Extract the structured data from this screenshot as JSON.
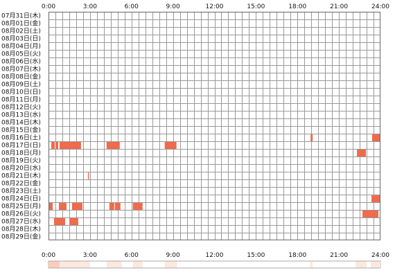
{
  "chart_data": {
    "type": "heatmap",
    "x_unit": "hour",
    "x_range": [
      0,
      24
    ],
    "x_tick_values": [
      0,
      3,
      6,
      9,
      12,
      15,
      18,
      21,
      24
    ],
    "x_tick_labels": [
      "0:00",
      "3:00",
      "6:00",
      "9:00",
      "12:00",
      "15:00",
      "18:00",
      "21:00",
      "24:00"
    ],
    "rows": [
      "07月31日(木)",
      "08月01日(金)",
      "08月02日(土)",
      "08月03日(日)",
      "08月04日(月)",
      "08月05日(火)",
      "08月06日(水)",
      "08月07日(木)",
      "08月08日(金)",
      "08月09日(土)",
      "08月10日(日)",
      "08月11日(月)",
      "08月12日(火)",
      "08月13日(水)",
      "08月14日(木)",
      "08月15日(金)",
      "08月16日(土)",
      "08月17日(日)",
      "08月18日(月)",
      "08月19日(火)",
      "08月20日(水)",
      "08月21日(木)",
      "08月22日(金)",
      "08月23日(土)",
      "08月24日(日)",
      "08月25日(月)",
      "08月26日(火)",
      "08月27日(水)",
      "08月28日(木)",
      "08月29日(金)"
    ],
    "grid": true,
    "colors": {
      "bar": "#f06a4c",
      "grid": "#999999",
      "border": "#666666",
      "summary_light": "#fde8de",
      "summary_dark": "#fbcdb8"
    },
    "intervals": [
      {
        "row": 16,
        "start": 18.95,
        "end": 19.1
      },
      {
        "row": 16,
        "start": 23.4,
        "end": 23.95
      },
      {
        "row": 17,
        "start": 0.2,
        "end": 0.45
      },
      {
        "row": 17,
        "start": 0.5,
        "end": 0.7
      },
      {
        "row": 17,
        "start": 0.8,
        "end": 2.35
      },
      {
        "row": 17,
        "start": 4.2,
        "end": 5.15
      },
      {
        "row": 17,
        "start": 8.4,
        "end": 9.25
      },
      {
        "row": 18,
        "start": 22.3,
        "end": 22.95
      },
      {
        "row": 21,
        "start": 2.85,
        "end": 2.92
      },
      {
        "row": 24,
        "start": 23.35,
        "end": 23.95
      },
      {
        "row": 25,
        "start": 0.0,
        "end": 0.3
      },
      {
        "row": 25,
        "start": 0.75,
        "end": 1.3
      },
      {
        "row": 25,
        "start": 1.7,
        "end": 2.45
      },
      {
        "row": 25,
        "start": 4.4,
        "end": 4.75
      },
      {
        "row": 25,
        "start": 4.8,
        "end": 5.2
      },
      {
        "row": 25,
        "start": 6.1,
        "end": 6.8
      },
      {
        "row": 26,
        "start": 22.7,
        "end": 23.85
      },
      {
        "row": 27,
        "start": 0.4,
        "end": 1.2
      },
      {
        "row": 27,
        "start": 1.55,
        "end": 2.15
      }
    ],
    "summary": [
      {
        "start": 0.0,
        "end": 0.8,
        "level": 2
      },
      {
        "start": 0.8,
        "end": 2.5,
        "level": 1
      },
      {
        "start": 2.5,
        "end": 3.0,
        "level": 1
      },
      {
        "start": 4.2,
        "end": 5.3,
        "level": 1
      },
      {
        "start": 6.1,
        "end": 6.8,
        "level": 1
      },
      {
        "start": 8.4,
        "end": 9.3,
        "level": 1
      },
      {
        "start": 18.9,
        "end": 19.1,
        "level": 1
      },
      {
        "start": 22.2,
        "end": 23.0,
        "level": 1
      },
      {
        "start": 23.3,
        "end": 24.0,
        "level": 1
      }
    ]
  }
}
